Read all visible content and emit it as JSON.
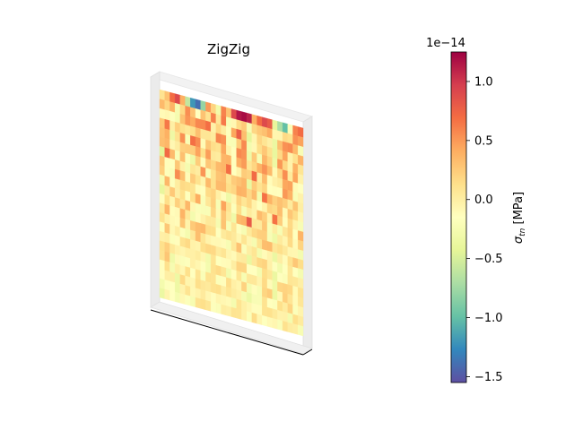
{
  "chart_data": {
    "type": "heatmap",
    "title": "ZigZig",
    "projection": "3d",
    "colormap": "Spectral_r",
    "colorbar": {
      "label": "σ_tn [MPa]",
      "label_main": "σ",
      "label_sub": "tn",
      "label_unit": " [MPa]",
      "offset_text": "1e−14",
      "ticks": [
        {
          "value": 1.0,
          "label": "1.0"
        },
        {
          "value": 0.5,
          "label": "0.5"
        },
        {
          "value": 0.0,
          "label": "0.0"
        },
        {
          "value": -0.5,
          "label": "−0.5"
        },
        {
          "value": -1.0,
          "label": "−1.0"
        },
        {
          "value": -1.5,
          "label": "−1.5"
        }
      ],
      "vmin": -1.55,
      "vmax": 1.25,
      "colors": [
        "#5e4fa2",
        "#3288bd",
        "#66c2a5",
        "#abdda4",
        "#e6f598",
        "#ffffbf",
        "#fee08b",
        "#fdae61",
        "#f46d43",
        "#d53e4f",
        "#9e0142"
      ]
    },
    "field": {
      "columns": 28,
      "rows": 22,
      "top_row_extremes": true,
      "dominant_range": [
        -0.3,
        0.6
      ]
    }
  }
}
